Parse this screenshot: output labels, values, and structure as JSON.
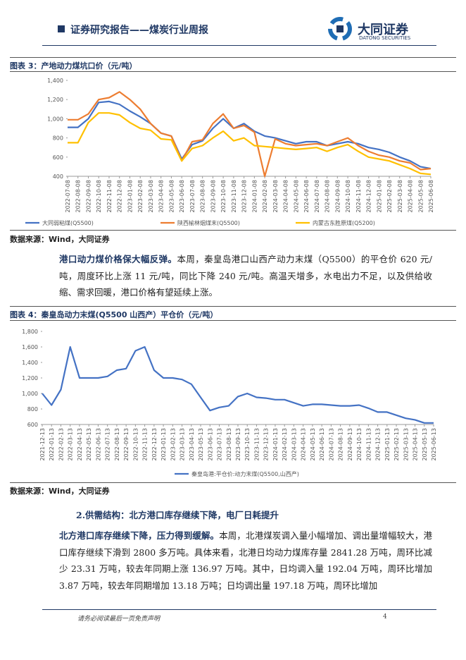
{
  "header": {
    "title": "证券研究报告——煤炭行业周报",
    "logo_name": "大同证券",
    "logo_sub": "DATONG SECURITIES"
  },
  "figures": [
    {
      "caption": "图表 3：产地动力煤坑口价（元/吨）",
      "source": "数据来源：Wind，大同证券"
    },
    {
      "caption": "图表 4：秦皇岛动力末煤(Q5500 山西产）平仓价（元/吨）",
      "source": "数据来源：Wind，大同证券"
    }
  ],
  "paragraphs": [
    {
      "lead": "港口动力煤价格保大幅反弹。",
      "text": "本周，秦皇岛港口山西产动力末煤（Q5500）的平仓价 620 元/吨，周度环比上涨 11 元/吨，同比下降 240 元/吨。高温天增多，水电出力不足，以及供给收缩、需求回暖，港口价格有望延续上涨。"
    },
    {
      "lead": "北方港口库存继续下降，压力得到缓解。",
      "text": "本周，北港煤炭调入量小幅增加、调出量增幅较大，港口库存继续下滑到 2800 多万吨。具体来看，北港日均动力煤库存量 2841.28 万吨，周环比减少 23.31 万吨，较去年同期上涨 136.97 万吨。其中，日均调入量 192.04 万吨，周环比增加 3.87 万吨，较去年同期增加 13.18 万吨；日均调出量 197.18 万吨，周环比增加"
    }
  ],
  "section_heading": "2.供需结构：北方港口库存继续下降，电厂日耗提升",
  "footer": {
    "disclaimer": "请务必阅读最后一页免责声明",
    "page": "4"
  },
  "chart_data": [
    {
      "type": "line",
      "grid": false,
      "categories": [
        "2022-07-08",
        "2022-08-08",
        "2022-09-08",
        "2022-10-08",
        "2022-11-08",
        "2022-12-08",
        "2023-01-08",
        "2023-02-08",
        "2023-03-08",
        "2023-04-08",
        "2023-05-08",
        "2023-06-08",
        "2023-07-08",
        "2023-08-08",
        "2023-09-08",
        "2023-10-08",
        "2023-11-08",
        "2023-12-08",
        "2024-01-08",
        "2024-02-08",
        "2024-03-08",
        "2024-04-08",
        "2024-05-08",
        "2024-06-08",
        "2024-07-08",
        "2024-08-08",
        "2024-09-08",
        "2024-10-08",
        "2024-11-08",
        "2024-12-08",
        "2025-01-08",
        "2025-02-08",
        "2025-03-08",
        "2025-04-08",
        "2025-05-08",
        "2025-06-08"
      ],
      "ylim": [
        400,
        1400
      ],
      "yticks": [
        400,
        600,
        800,
        {
          "value": 1000,
          "label": "1,000"
        },
        {
          "value": 1200,
          "label": "1,200"
        },
        {
          "value": 1400,
          "label": "1,400"
        }
      ],
      "series": [
        {
          "name": "大同弱粘煤(Q5500)",
          "color": "#4472c4",
          "values": [
            910,
            910,
            1000,
            1170,
            1180,
            1150,
            1080,
            1020,
            950,
            850,
            820,
            580,
            730,
            770,
            900,
            1000,
            900,
            950,
            870,
            820,
            800,
            770,
            740,
            760,
            760,
            720,
            740,
            760,
            740,
            700,
            680,
            650,
            600,
            560,
            500,
            480
          ]
        },
        {
          "name": "陕西榆林烟煤末(Q5500)",
          "color": "#ed7d31",
          "values": [
            990,
            990,
            1050,
            1200,
            1220,
            1280,
            1200,
            1100,
            950,
            850,
            820,
            560,
            760,
            780,
            950,
            1050,
            900,
            930,
            860,
            400,
            790,
            740,
            720,
            730,
            740,
            720,
            760,
            800,
            720,
            660,
            620,
            600,
            560,
            540,
            470,
            480
          ]
        },
        {
          "name": "内蒙古东胜原煤(Q5200)",
          "color": "#ffc000",
          "values": [
            750,
            750,
            960,
            1060,
            1060,
            1040,
            960,
            900,
            880,
            790,
            780,
            560,
            690,
            720,
            800,
            870,
            770,
            800,
            720,
            710,
            700,
            690,
            680,
            690,
            700,
            660,
            700,
            730,
            660,
            600,
            580,
            560,
            520,
            480,
            430,
            420
          ]
        }
      ]
    },
    {
      "type": "line",
      "grid": false,
      "categories": [
        "2021-12-13",
        "2022-01-13",
        "2022-02-13",
        "2022-03-13",
        "2022-04-13",
        "2022-05-13",
        "2022-06-13",
        "2022-07-13",
        "2022-08-13",
        "2022-09-13",
        "2022-10-13",
        "2022-11-13",
        "2022-12-13",
        "2023-01-13",
        "2023-02-13",
        "2023-03-13",
        "2023-04-13",
        "2023-05-13",
        "2023-06-13",
        "2023-07-13",
        "2023-08-13",
        "2023-09-13",
        "2023-10-13",
        "2023-11-13",
        "2023-12-13",
        "2024-01-13",
        "2024-02-13",
        "2024-03-13",
        "2024-04-13",
        "2024-05-13",
        "2024-06-13",
        "2024-07-13",
        "2024-08-13",
        "2024-09-13",
        "2024-10-13",
        "2024-11-13",
        "2024-12-13",
        "2025-01-13",
        "2025-02-13",
        "2025-03-13",
        "2025-04-13",
        "2025-05-13",
        "2025-06-13"
      ],
      "ylim": [
        600,
        1800
      ],
      "yticks": [
        600,
        800,
        {
          "value": 1000,
          "label": "1,000"
        },
        {
          "value": 1200,
          "label": "1,200"
        },
        {
          "value": 1400,
          "label": "1,400"
        },
        {
          "value": 1600,
          "label": "1,600"
        },
        {
          "value": 1800,
          "label": "1,800"
        }
      ],
      "series": [
        {
          "name": "秦皇岛港:平仓价:动力末煤(Q5500,山西产)",
          "color": "#4472c4",
          "values": [
            1000,
            850,
            1050,
            1600,
            1200,
            1200,
            1200,
            1220,
            1300,
            1320,
            1550,
            1600,
            1300,
            1200,
            1200,
            1180,
            1120,
            950,
            780,
            820,
            840,
            960,
            1000,
            950,
            940,
            920,
            920,
            880,
            840,
            860,
            860,
            850,
            840,
            840,
            850,
            810,
            760,
            760,
            720,
            680,
            660,
            620,
            620
          ]
        }
      ]
    }
  ]
}
